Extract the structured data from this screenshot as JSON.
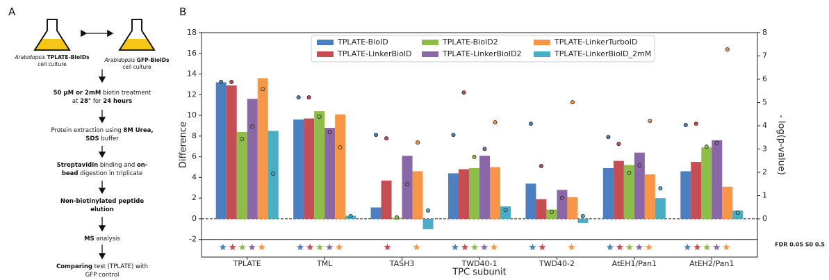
{
  "panels": {
    "a": "A",
    "b": "B"
  },
  "workflow": {
    "cultures": [
      {
        "segments": [
          {
            "text": "Arabidopsis",
            "italic": true
          },
          {
            "text": " TPLATE-BioIDs",
            "bold": true
          },
          {
            "text": "cell culture",
            "newline": true
          }
        ]
      },
      {
        "segments": [
          {
            "text": "Arabidopsis",
            "italic": true
          },
          {
            "text": " GFP-BioIDs",
            "bold": true
          },
          {
            "text": "cell culture",
            "newline": true
          }
        ]
      }
    ],
    "steps": [
      {
        "segments": [
          {
            "text": "50 µM or 2mM",
            "bold": true
          },
          {
            "text": " biotin treatment at "
          },
          {
            "text": "28°",
            "bold": true
          },
          {
            "text": " for "
          },
          {
            "text": "24 hours",
            "bold": true
          }
        ]
      },
      {
        "segments": [
          {
            "text": "Protein extraction using "
          },
          {
            "text": "8M Urea, SDS",
            "bold": true
          },
          {
            "text": " buffer"
          }
        ]
      },
      {
        "segments": [
          {
            "text": "Streptavidin",
            "bold": true
          },
          {
            "text": " binding and "
          },
          {
            "text": "on-bead",
            "bold": true
          },
          {
            "text": " digestion in triplicate"
          }
        ]
      },
      {
        "segments": [
          {
            "text": "Non-biotinylated peptide elution",
            "bold": true
          }
        ]
      },
      {
        "segments": [
          {
            "text": "MS",
            "bold": true
          },
          {
            "text": " analysis"
          }
        ]
      },
      {
        "segments": [
          {
            "text": "Comparing",
            "bold": true
          },
          {
            "text": " test (TPLATE) with GFP control"
          }
        ]
      }
    ]
  },
  "chart_data": {
    "type": "bar",
    "xlabel": "TPC subunit",
    "ylabel": "Difference",
    "y2label": "- log(p-value)",
    "note": "FDR 0.05 S0 0.5",
    "categories": [
      "TPLATE",
      "TML",
      "TASH3",
      "TWD40-1",
      "TWD40-2",
      "AtEH1/Pan1",
      "AtEH2/Pan1"
    ],
    "ylim": [
      -3.7,
      18
    ],
    "yticks": [
      -2,
      0,
      2,
      4,
      6,
      8,
      10,
      12,
      14,
      16,
      18
    ],
    "y2lim": [
      -1.64,
      8
    ],
    "y2ticks": [
      0,
      1,
      2,
      3,
      4,
      5,
      6,
      7,
      8
    ],
    "reference_lines": [
      {
        "value": 0,
        "style": "dashed"
      },
      {
        "value": -2,
        "style": "solid"
      }
    ],
    "legend": "top-center",
    "series": [
      {
        "name": "TPLATE-BioID",
        "color": "#4c7fc0",
        "values": [
          13.2,
          9.6,
          1.1,
          4.4,
          3.4,
          4.9,
          4.6
        ],
        "y2_values": [
          5.88,
          5.22,
          3.61,
          3.61,
          4.09,
          3.52,
          4.03
        ],
        "significant": [
          true,
          true,
          false,
          true,
          true,
          true,
          true
        ]
      },
      {
        "name": "TPLATE-LinkerBioID",
        "color": "#c44e52",
        "values": [
          12.9,
          9.7,
          3.7,
          4.8,
          1.9,
          5.6,
          5.5
        ],
        "y2_values": [
          5.88,
          5.22,
          3.46,
          5.43,
          2.27,
          3.22,
          4.09
        ],
        "significant": [
          true,
          true,
          true,
          true,
          true,
          true,
          true
        ]
      },
      {
        "name": "TPLATE-BioID2",
        "color": "#8ebd4b",
        "values": [
          8.4,
          10.4,
          0.1,
          4.9,
          0.9,
          5.2,
          6.9
        ],
        "y2_values": [
          3.43,
          4.39,
          0.06,
          2.66,
          0.3,
          1.97,
          3.1
        ],
        "significant": [
          true,
          true,
          false,
          true,
          false,
          true,
          true
        ]
      },
      {
        "name": "TPLATE-LinkerBioID2",
        "color": "#8a68a8",
        "values": [
          11.6,
          8.8,
          6.1,
          6.1,
          2.8,
          6.4,
          7.6
        ],
        "y2_values": [
          3.97,
          3.73,
          1.49,
          3.01,
          0.9,
          2.3,
          3.25
        ],
        "significant": [
          true,
          true,
          false,
          true,
          false,
          true,
          true
        ]
      },
      {
        "name": "TPLATE-LinkerTurboID",
        "color": "#f79646",
        "values": [
          13.6,
          10.1,
          4.6,
          5.0,
          2.1,
          4.3,
          3.1
        ],
        "y2_values": [
          5.58,
          3.07,
          3.28,
          4.15,
          5.01,
          4.21,
          7.28
        ],
        "significant": [
          true,
          true,
          true,
          true,
          true,
          true,
          true
        ]
      },
      {
        "name": "TPLATE-LinkerBioID_2mM",
        "color": "#4bacc6",
        "values": [
          8.5,
          0.3,
          -1.0,
          1.2,
          -0.4,
          2.0,
          0.8
        ],
        "y2_values": [
          1.94,
          0.12,
          0.36,
          0.39,
          0.12,
          1.31,
          0.27
        ],
        "significant": [
          false,
          false,
          false,
          false,
          false,
          false,
          false
        ]
      }
    ]
  }
}
